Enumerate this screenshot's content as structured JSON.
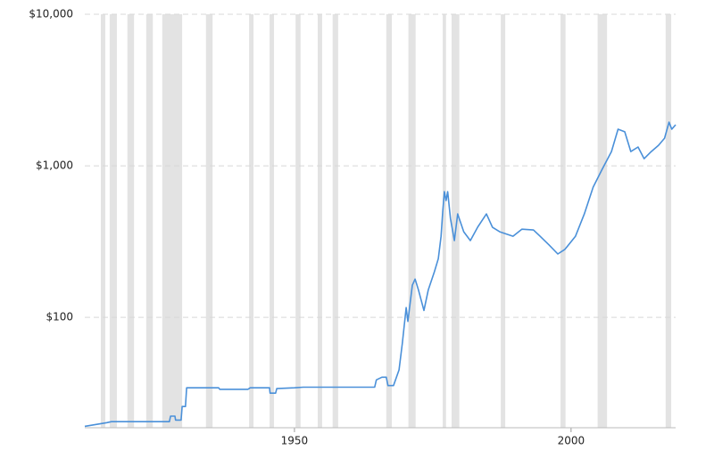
{
  "chart_data": {
    "type": "line",
    "log_y": true,
    "grid": true,
    "xlim": [
      1912.1,
      2018.9
    ],
    "ylim": [
      18.7,
      10000
    ],
    "xticks": [
      1950,
      2000
    ],
    "yticks": [
      {
        "value": 100,
        "label": "$100"
      },
      {
        "value": 1000,
        "label": "$1,000"
      },
      {
        "value": 10000,
        "label": "$10,000"
      }
    ],
    "recession_color": "#e3e3e3",
    "recessions": [
      [
        1915.0,
        1915.8
      ],
      [
        1916.6,
        1917.9
      ],
      [
        1919.8,
        1921.0
      ],
      [
        1923.2,
        1924.4
      ],
      [
        1926.1,
        1929.7
      ],
      [
        1934.0,
        1935.2
      ],
      [
        1941.8,
        1942.6
      ],
      [
        1945.5,
        1946.3
      ],
      [
        1950.2,
        1951.1
      ],
      [
        1954.2,
        1955.0
      ],
      [
        1956.9,
        1957.9
      ],
      [
        1966.6,
        1967.6
      ],
      [
        1970.6,
        1971.9
      ],
      [
        1976.8,
        1977.4
      ],
      [
        1978.4,
        1979.8
      ],
      [
        1987.3,
        1988.1
      ],
      [
        1998.1,
        1999.0
      ],
      [
        2004.8,
        2006.5
      ],
      [
        2017.1,
        2018.1
      ]
    ],
    "x": [
      1912.1,
      1916.1,
      1916.9,
      1925.8,
      1927.4,
      1927.6,
      1928.4,
      1928.5,
      1929.5,
      1929.7,
      1930.3,
      1930.5,
      1936.3,
      1936.5,
      1941.6,
      1942.0,
      1945.5,
      1945.6,
      1946.6,
      1946.8,
      1950.0,
      1951.6,
      1964.5,
      1964.8,
      1965.8,
      1966.6,
      1966.9,
      1967.9,
      1968.9,
      1969.5,
      1970.2,
      1970.5,
      1971.3,
      1971.8,
      1972.4,
      1973.4,
      1974.2,
      1975.3,
      1976.0,
      1976.5,
      1976.8,
      1977.1,
      1977.4,
      1977.7,
      1978.2,
      1978.9,
      1979.5,
      1980.6,
      1981.8,
      1983.1,
      1984.7,
      1985.8,
      1987.1,
      1989.5,
      1991.1,
      1993.2,
      1994.4,
      1996.0,
      1997.6,
      1998.9,
      2000.8,
      2002.4,
      2004.0,
      2005.6,
      2007.3,
      2008.5,
      2009.7,
      2010.8,
      2012.1,
      2013.2,
      2014.5,
      2015.8,
      2016.9,
      2017.7,
      2018.2,
      2018.9
    ],
    "series": [
      {
        "color": "#4a90d9",
        "values": [
          19.1,
          20.2,
          20.5,
          20.5,
          20.5,
          22.3,
          22.3,
          21.0,
          21.0,
          25.8,
          25.8,
          34.3,
          34.3,
          33.5,
          33.5,
          34.3,
          34.3,
          31.6,
          31.6,
          33.9,
          34.3,
          34.6,
          34.6,
          38.7,
          40.3,
          40.3,
          35.5,
          35.5,
          45,
          67.5,
          116,
          94,
          163,
          179,
          152,
          111,
          152,
          200,
          244,
          343,
          494,
          675,
          590,
          675,
          450,
          321,
          481,
          367,
          321,
          393,
          481,
          393,
          367,
          343,
          382,
          377,
          343,
          301,
          262,
          281,
          343,
          481,
          723,
          947,
          1242,
          1743,
          1676,
          1242,
          1330,
          1114,
          1242,
          1365,
          1521,
          1941,
          1743,
          1866
        ]
      }
    ]
  }
}
